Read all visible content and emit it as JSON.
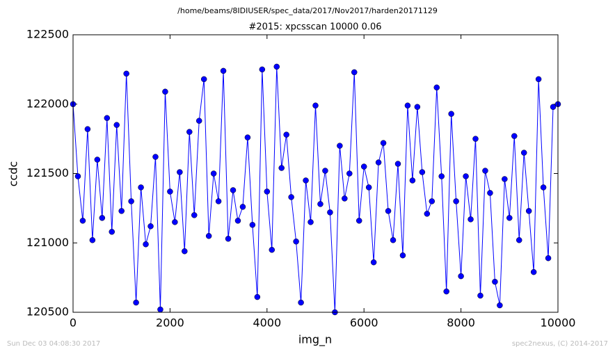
{
  "chart_data": {
    "type": "line",
    "suptitle": "/home/beams/8IDIUSER/spec_data/2017/Nov2017/harden20171129",
    "title": "#2015: xpcsscan 10000 0.06",
    "xlabel": "img_n",
    "ylabel": "ccdc",
    "footer_left": "Sun Dec 03 04:08:30 2017",
    "footer_right": "spec2nexus, (C) 2014-2017",
    "x": [
      0,
      100,
      200,
      300,
      400,
      500,
      600,
      700,
      800,
      900,
      1000,
      1100,
      1200,
      1300,
      1400,
      1500,
      1600,
      1700,
      1800,
      1900,
      2000,
      2100,
      2200,
      2300,
      2400,
      2500,
      2600,
      2700,
      2800,
      2900,
      3000,
      3100,
      3200,
      3300,
      3400,
      3500,
      3600,
      3700,
      3800,
      3900,
      4000,
      4100,
      4200,
      4300,
      4400,
      4500,
      4600,
      4700,
      4800,
      4900,
      5000,
      5100,
      5200,
      5300,
      5400,
      5500,
      5600,
      5700,
      5800,
      5900,
      6000,
      6100,
      6200,
      6300,
      6400,
      6500,
      6600,
      6700,
      6800,
      6900,
      7000,
      7100,
      7200,
      7300,
      7400,
      7500,
      7600,
      7700,
      7800,
      7900,
      8000,
      8100,
      8200,
      8300,
      8400,
      8500,
      8600,
      8700,
      8800,
      8900,
      9000,
      9100,
      9200,
      9300,
      9400,
      9500,
      9600,
      9700,
      9800,
      9900,
      10000
    ],
    "series": [
      {
        "name": "ccdc",
        "color": "#0000ff",
        "values": [
          122000,
          121480,
          121160,
          121820,
          121020,
          121600,
          121180,
          121900,
          121080,
          121850,
          121230,
          122220,
          121300,
          120570,
          121400,
          120990,
          121120,
          121620,
          120520,
          122090,
          121370,
          121150,
          121510,
          120940,
          121800,
          121200,
          121880,
          122180,
          121050,
          121500,
          121300,
          122240,
          121030,
          121380,
          121160,
          121260,
          121760,
          121130,
          120610,
          122250,
          121370,
          120950,
          122270,
          121540,
          121780,
          121330,
          121010,
          120570,
          121450,
          121150,
          121990,
          121280,
          121520,
          121220,
          120500,
          121700,
          121320,
          121500,
          122230,
          121160,
          121550,
          121400,
          120860,
          121580,
          121720,
          121230,
          121020,
          121570,
          120910,
          121990,
          121450,
          121980,
          121510,
          121210,
          121300,
          122120,
          121480,
          120650,
          121930,
          121300,
          120760,
          121480,
          121170,
          121750,
          120620,
          121520,
          121360,
          120720,
          120550,
          121460,
          121180,
          121770,
          121020,
          121650,
          121230,
          120790,
          122180,
          121400,
          120890,
          121980,
          122000
        ]
      }
    ],
    "xlim": [
      0,
      10000
    ],
    "xticks": [
      0,
      2000,
      4000,
      6000,
      8000,
      10000
    ],
    "ylim": [
      120500,
      122500
    ],
    "yticks": [
      120500,
      121000,
      121500,
      122000,
      122500
    ],
    "grid": false
  }
}
